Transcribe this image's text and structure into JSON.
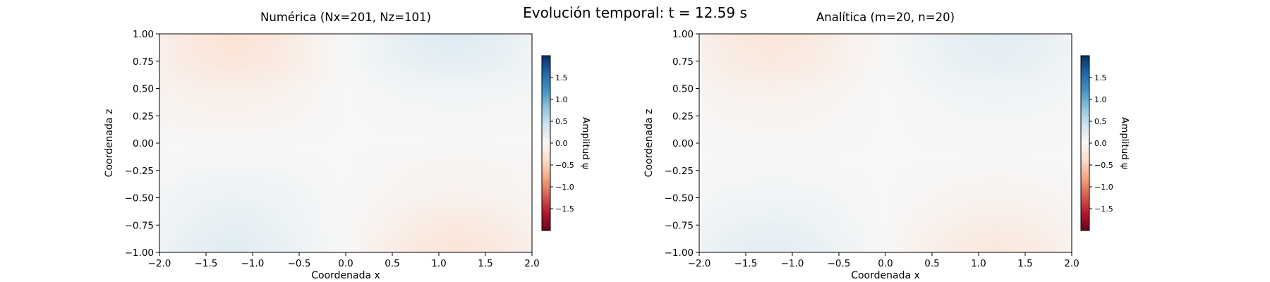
{
  "figure": {
    "suptitle": "Evolución temporal: t = 12.59 s"
  },
  "colormap": {
    "name": "RdBu",
    "stops": [
      "#67001f",
      "#b2182b",
      "#d6604d",
      "#f4a582",
      "#fddbc7",
      "#f7f7f7",
      "#d1e5f0",
      "#92c5de",
      "#4393c3",
      "#2166ac",
      "#053061"
    ]
  },
  "chart_data": [
    {
      "type": "heatmap",
      "title": "Numérica (Nx=201, Nz=101)",
      "xlabel": "Coordenada x",
      "ylabel": "Coordenada z",
      "xlim": [
        -2.0,
        2.0
      ],
      "ylim": [
        -1.0,
        1.0
      ],
      "xticks": [
        "−2.0",
        "−1.5",
        "−1.0",
        "−0.5",
        "0.0",
        "0.5",
        "1.0",
        "1.5",
        "2.0"
      ],
      "yticks": [
        "1.00",
        "0.75",
        "0.50",
        "0.25",
        "0.00",
        "−0.25",
        "−0.50",
        "−0.75",
        "−1.00"
      ],
      "x": [
        -2.0,
        -1.6,
        -1.2,
        -0.8,
        -0.4,
        0.0,
        0.4,
        0.8,
        1.2,
        1.6,
        2.0
      ],
      "z": [
        -1.0,
        -0.75,
        -0.5,
        -0.25,
        0.0,
        0.25,
        0.5,
        0.75,
        1.0
      ],
      "values": [
        [
          0.08,
          0.2,
          0.25,
          0.18,
          0.08,
          0.0,
          -0.12,
          -0.22,
          -0.27,
          -0.22,
          -0.12
        ],
        [
          0.06,
          0.14,
          0.18,
          0.14,
          0.06,
          0.0,
          -0.08,
          -0.16,
          -0.2,
          -0.16,
          -0.08
        ],
        [
          0.04,
          0.1,
          0.12,
          0.1,
          0.05,
          0.0,
          -0.04,
          -0.07,
          -0.09,
          -0.07,
          -0.04
        ],
        [
          0.01,
          0.04,
          0.05,
          0.04,
          0.02,
          0.0,
          -0.03,
          -0.05,
          -0.06,
          -0.05,
          -0.03
        ],
        [
          0.0,
          0.0,
          0.0,
          0.0,
          0.0,
          0.0,
          0.0,
          0.0,
          0.0,
          0.0,
          0.0
        ],
        [
          -0.04,
          -0.07,
          -0.08,
          -0.06,
          -0.03,
          0.0,
          0.02,
          0.03,
          0.04,
          0.03,
          0.02
        ],
        [
          -0.07,
          -0.11,
          -0.12,
          -0.1,
          -0.05,
          0.0,
          0.04,
          0.06,
          0.07,
          0.06,
          0.04
        ],
        [
          -0.1,
          -0.2,
          -0.24,
          -0.2,
          -0.1,
          0.0,
          0.1,
          0.17,
          0.2,
          0.16,
          0.08
        ],
        [
          -0.1,
          -0.22,
          -0.28,
          -0.22,
          -0.1,
          0.0,
          0.12,
          0.22,
          0.26,
          0.2,
          0.1
        ]
      ],
      "colorbar": {
        "label": "Amplitud ψ",
        "vmin": -2.0,
        "vmax": 2.0,
        "ticks": [
          1.5,
          1.0,
          0.5,
          0.0,
          -0.5,
          -1.0,
          -1.5
        ],
        "tick_labels": [
          "1.5",
          "1.0",
          "0.5",
          "0.0",
          "−0.5",
          "−1.0",
          "−1.5"
        ]
      }
    },
    {
      "type": "heatmap",
      "title": "Analítica (m=20, n=20)",
      "xlabel": "Coordenada x",
      "ylabel": "Coordenada z",
      "xlim": [
        -2.0,
        2.0
      ],
      "ylim": [
        -1.0,
        1.0
      ],
      "xticks": [
        "−2.0",
        "−1.5",
        "−1.0",
        "−0.5",
        "0.0",
        "0.5",
        "1.0",
        "1.5",
        "2.0"
      ],
      "yticks": [
        "1.00",
        "0.75",
        "0.50",
        "0.25",
        "0.00",
        "−0.25",
        "−0.50",
        "−0.75",
        "−1.00"
      ],
      "x": [
        -2.0,
        -1.6,
        -1.2,
        -0.8,
        -0.4,
        0.0,
        0.4,
        0.8,
        1.2,
        1.6,
        2.0
      ],
      "z": [
        -1.0,
        -0.75,
        -0.5,
        -0.25,
        0.0,
        0.25,
        0.5,
        0.75,
        1.0
      ],
      "values": [
        [
          0.1,
          0.18,
          0.22,
          0.17,
          0.08,
          0.0,
          -0.1,
          -0.18,
          -0.22,
          -0.18,
          -0.08
        ],
        [
          0.07,
          0.12,
          0.15,
          0.12,
          0.05,
          0.0,
          -0.07,
          -0.12,
          -0.15,
          -0.12,
          -0.06
        ],
        [
          0.03,
          0.06,
          0.07,
          0.06,
          0.03,
          0.0,
          -0.03,
          -0.06,
          -0.07,
          -0.06,
          -0.03
        ],
        [
          0.01,
          0.02,
          0.03,
          0.02,
          0.01,
          0.0,
          -0.01,
          -0.02,
          -0.03,
          -0.02,
          -0.01
        ],
        [
          -0.01,
          -0.02,
          -0.02,
          -0.02,
          -0.01,
          0.0,
          0.01,
          0.02,
          0.02,
          0.02,
          0.01
        ],
        [
          -0.03,
          -0.05,
          -0.06,
          -0.05,
          -0.02,
          0.0,
          0.02,
          0.04,
          0.05,
          0.04,
          0.02
        ],
        [
          -0.05,
          -0.09,
          -0.1,
          -0.08,
          -0.04,
          0.0,
          0.04,
          0.08,
          0.09,
          0.08,
          0.04
        ],
        [
          -0.09,
          -0.17,
          -0.2,
          -0.16,
          -0.08,
          0.0,
          0.08,
          0.15,
          0.18,
          0.15,
          0.08
        ],
        [
          -0.1,
          -0.2,
          -0.24,
          -0.19,
          -0.09,
          0.0,
          0.1,
          0.18,
          0.22,
          0.18,
          0.1
        ]
      ],
      "colorbar": {
        "label": "Amplitud ψ",
        "vmin": -2.0,
        "vmax": 2.0,
        "ticks": [
          1.5,
          1.0,
          0.5,
          0.0,
          -0.5,
          -1.0,
          -1.5
        ],
        "tick_labels": [
          "1.5",
          "1.0",
          "0.5",
          "0.0",
          "−0.5",
          "−1.0",
          "−1.5"
        ]
      }
    }
  ]
}
